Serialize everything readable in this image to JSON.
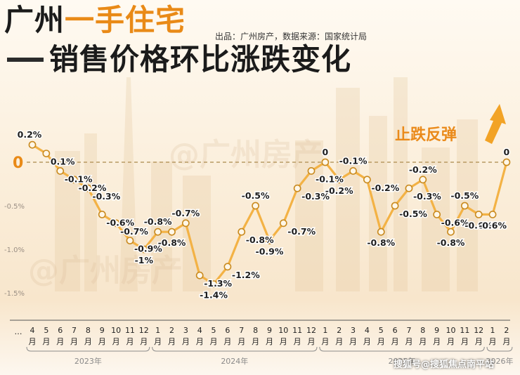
{
  "chart_data": {
    "type": "line",
    "title_prefix": "广州",
    "title_highlight": "一手住宅",
    "title_line2": "销售价格环比涨跌变化",
    "source": "出品：广州房产，数据来源：国家统计局",
    "watermark": "@广州房产",
    "watermark_corner": "搜狐号@搜狐焦点南平站",
    "annotation": "止跌反弹",
    "zero_label": "0",
    "y_ticks": [
      {
        "value": -0.5,
        "label": "-0.5%"
      },
      {
        "value": -1.0,
        "label": "-1.0%"
      },
      {
        "value": -1.5,
        "label": "-1.5%"
      }
    ],
    "ylim": [
      -1.6,
      0.3
    ],
    "x_leading": "…",
    "x": [
      "4月",
      "5月",
      "6月",
      "7月",
      "8月",
      "9月",
      "10月",
      "11月",
      "12月",
      "1月",
      "2月",
      "3月",
      "4月",
      "5月",
      "6月",
      "7月",
      "8月",
      "9月",
      "10月",
      "11月",
      "12月",
      "1月",
      "2月",
      "3月",
      "4月",
      "5月",
      "6月",
      "7月",
      "8月",
      "9月",
      "10月",
      "11月",
      "12月",
      "1月",
      "2月"
    ],
    "values": [
      0.2,
      0.1,
      -0.1,
      -0.2,
      -0.3,
      -0.6,
      -0.7,
      -0.9,
      -1.0,
      -0.8,
      -0.8,
      -0.7,
      -1.3,
      -1.4,
      -1.2,
      -0.8,
      -0.5,
      -0.9,
      -0.7,
      -0.3,
      -0.1,
      0,
      -0.2,
      -0.1,
      -0.2,
      -0.8,
      -0.5,
      -0.3,
      -0.2,
      -0.6,
      -0.8,
      -0.5,
      -0.6,
      -0.6,
      0
    ],
    "point_labels": [
      "0.2%",
      "0.1%",
      "-0.1%",
      "-0.2%",
      "-0.3%",
      "-0.6%",
      "-0.7%",
      "-0.9%",
      "-1%",
      "-0.8%",
      "-0.8%",
      "-0.7%",
      "-1.3%",
      "-1.4%",
      "-1.2%",
      "-0.8%",
      "-0.5%",
      "-0.9%",
      "-0.7%",
      "-0.3%",
      "-0.1%",
      "0",
      "-0.2%",
      "-0.1%",
      "-0.2%",
      "-0.8%",
      "-0.5%",
      "-0.3%",
      "-0.2%",
      "-0.6%",
      "-0.8%",
      "-0.5%",
      "-0.6%",
      "-0.6%",
      "0"
    ],
    "years": [
      {
        "label": "2023年",
        "from": 0,
        "to": 8
      },
      {
        "label": "2024年",
        "from": 9,
        "to": 20
      },
      {
        "label": "2025年",
        "from": 21,
        "to": 32
      },
      {
        "label": "2026年",
        "from": 33,
        "to": 34
      }
    ],
    "colors": {
      "line": "#f3b245",
      "marker_fill": "#fff7e8",
      "marker_stroke": "#c98a1f",
      "zero_line": "#b89a63",
      "zero_label": "#e98a17",
      "label": "#1e1e1e",
      "axis": "#555555",
      "year_text": "#8a8a8a"
    },
    "grid": false,
    "legend": "none"
  }
}
